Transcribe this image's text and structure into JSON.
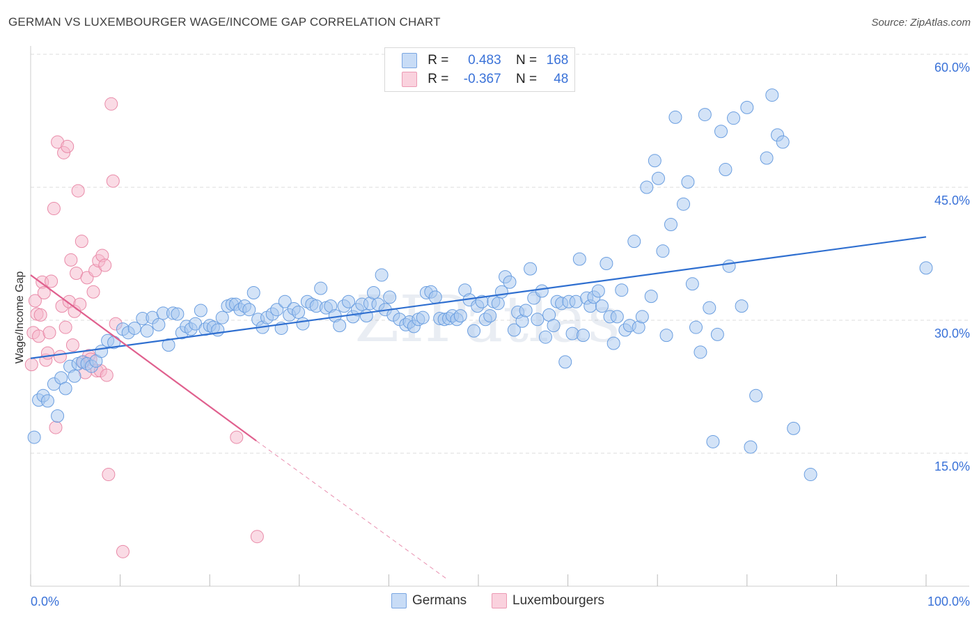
{
  "header": {
    "title": "GERMAN VS LUXEMBOURGER WAGE/INCOME GAP CORRELATION CHART",
    "source": "Source: ZipAtlas.com"
  },
  "legend": {
    "r_label": "R =",
    "n_label": "N =",
    "rows": [
      {
        "name": "Germans",
        "r": "0.483",
        "n": "168",
        "color": "#a8c8f0"
      },
      {
        "name": "Luxembourgers",
        "r": "-0.367",
        "n": "48",
        "color": "#f5b8cb"
      }
    ]
  },
  "colors": {
    "german_fill": "#a8c8f0",
    "german_stroke": "#6a9ee0",
    "german_line": "#2f6fd0",
    "lux_fill": "#f5b8cb",
    "lux_stroke": "#e98aa8",
    "lux_line": "#e0608e",
    "grid": "#dcdcdc",
    "tick_label": "#3a72d8"
  },
  "chart_data": {
    "type": "scatter",
    "title": "GERMAN VS LUXEMBOURGER WAGE/INCOME GAP CORRELATION CHART",
    "xlabel": "",
    "ylabel": "Wage/Income Gap",
    "xlim": [
      0,
      100
    ],
    "ylim": [
      0,
      63
    ],
    "x_tick_labels": [
      "0.0%",
      "100.0%"
    ],
    "y_ticks": [
      15,
      30,
      45,
      60
    ],
    "y_tick_labels": [
      "15.0%",
      "30.0%",
      "45.0%",
      "60.0%"
    ],
    "grid": true,
    "legend_position": "top-center",
    "series": [
      {
        "name": "Germans",
        "trend": {
          "x": [
            0,
            100
          ],
          "y": [
            25.7,
            39.4
          ]
        },
        "points": [
          [
            0.4,
            16.8
          ],
          [
            0.9,
            21
          ],
          [
            1.4,
            21.5
          ],
          [
            1.9,
            20.9
          ],
          [
            2.6,
            22.8
          ],
          [
            3,
            19.2
          ],
          [
            3.4,
            23.5
          ],
          [
            3.9,
            22.3
          ],
          [
            4.4,
            24.8
          ],
          [
            4.9,
            23.7
          ],
          [
            5.3,
            25.1
          ],
          [
            5.8,
            25.3
          ],
          [
            6.3,
            25.1
          ],
          [
            6.8,
            24.8
          ],
          [
            7.3,
            25.4
          ],
          [
            7.9,
            26.5
          ],
          [
            8.6,
            27.7
          ],
          [
            9.3,
            27.5
          ],
          [
            10.3,
            29
          ],
          [
            10.9,
            28.6
          ],
          [
            11.6,
            29.1
          ],
          [
            12.5,
            30.2
          ],
          [
            13,
            28.8
          ],
          [
            13.6,
            30.3
          ],
          [
            14.3,
            29.5
          ],
          [
            14.8,
            30.8
          ],
          [
            15.4,
            27.2
          ],
          [
            15.9,
            30.8
          ],
          [
            16.4,
            30.7
          ],
          [
            16.9,
            28.6
          ],
          [
            17.4,
            29.3
          ],
          [
            17.9,
            29
          ],
          [
            18.4,
            29.6
          ],
          [
            19,
            31.1
          ],
          [
            19.5,
            29
          ],
          [
            20,
            29.4
          ],
          [
            20.4,
            29.2
          ],
          [
            20.9,
            28.9
          ],
          [
            21.4,
            30.3
          ],
          [
            22,
            31.6
          ],
          [
            22.5,
            31.8
          ],
          [
            22.9,
            31.8
          ],
          [
            23.4,
            31.2
          ],
          [
            23.9,
            31.6
          ],
          [
            24.4,
            31.2
          ],
          [
            24.9,
            33.1
          ],
          [
            25.4,
            30.1
          ],
          [
            25.9,
            29.2
          ],
          [
            26.4,
            30.3
          ],
          [
            27,
            30.7
          ],
          [
            27.5,
            31.2
          ],
          [
            28,
            29.1
          ],
          [
            28.4,
            32.1
          ],
          [
            28.9,
            30.6
          ],
          [
            29.4,
            31.3
          ],
          [
            29.9,
            30.9
          ],
          [
            30.4,
            29.6
          ],
          [
            30.9,
            32.1
          ],
          [
            31.4,
            31.8
          ],
          [
            31.9,
            31.6
          ],
          [
            32.4,
            33.6
          ],
          [
            33,
            31.4
          ],
          [
            33.5,
            31.6
          ],
          [
            34,
            30.5
          ],
          [
            34.5,
            29.4
          ],
          [
            35,
            31.6
          ],
          [
            35.5,
            32.1
          ],
          [
            36,
            30.4
          ],
          [
            36.5,
            31.2
          ],
          [
            37,
            31.8
          ],
          [
            37.5,
            30.5
          ],
          [
            37.9,
            31.9
          ],
          [
            38.3,
            33.1
          ],
          [
            38.8,
            31.8
          ],
          [
            39.2,
            35.1
          ],
          [
            39.6,
            31.2
          ],
          [
            40.1,
            32.6
          ],
          [
            40.5,
            30.6
          ],
          [
            41.2,
            30.1
          ],
          [
            41.9,
            29.5
          ],
          [
            42.3,
            29.8
          ],
          [
            42.8,
            29.3
          ],
          [
            43.3,
            30.1
          ],
          [
            43.8,
            30.3
          ],
          [
            44.2,
            33.1
          ],
          [
            44.7,
            33.2
          ],
          [
            45.2,
            32.6
          ],
          [
            45.7,
            30.2
          ],
          [
            46.2,
            30.1
          ],
          [
            46.7,
            30.2
          ],
          [
            47.1,
            30.5
          ],
          [
            47.6,
            30.1
          ],
          [
            48,
            30.5
          ],
          [
            48.5,
            33.4
          ],
          [
            49,
            32.3
          ],
          [
            49.5,
            28.8
          ],
          [
            49.9,
            31.6
          ],
          [
            50.4,
            32.1
          ],
          [
            50.8,
            30.1
          ],
          [
            51.3,
            30.5
          ],
          [
            51.7,
            32.1
          ],
          [
            52.2,
            31.9
          ],
          [
            52.6,
            33.2
          ],
          [
            53,
            34.9
          ],
          [
            53.5,
            34.3
          ],
          [
            54,
            28.9
          ],
          [
            54.4,
            30.9
          ],
          [
            54.9,
            29.9
          ],
          [
            55.3,
            31.1
          ],
          [
            55.8,
            35.8
          ],
          [
            56.2,
            32.5
          ],
          [
            56.6,
            30.1
          ],
          [
            57.1,
            33.3
          ],
          [
            57.5,
            28.1
          ],
          [
            57.9,
            30.6
          ],
          [
            58.4,
            29.4
          ],
          [
            58.8,
            32.1
          ],
          [
            59.3,
            31.9
          ],
          [
            59.7,
            25.3
          ],
          [
            60.1,
            32.1
          ],
          [
            60.5,
            28.5
          ],
          [
            60.9,
            32.1
          ],
          [
            61.3,
            36.9
          ],
          [
            61.7,
            28.3
          ],
          [
            62.1,
            32.5
          ],
          [
            62.5,
            31.6
          ],
          [
            62.9,
            32.6
          ],
          [
            63.4,
            33.3
          ],
          [
            63.8,
            31.6
          ],
          [
            64.3,
            36.4
          ],
          [
            64.7,
            30.4
          ],
          [
            65.1,
            27.4
          ],
          [
            65.5,
            30.4
          ],
          [
            66,
            33.4
          ],
          [
            66.4,
            28.9
          ],
          [
            66.9,
            29.4
          ],
          [
            67.4,
            38.9
          ],
          [
            67.9,
            29.2
          ],
          [
            68.3,
            30.4
          ],
          [
            68.8,
            45.0
          ],
          [
            69.3,
            32.7
          ],
          [
            69.7,
            48.0
          ],
          [
            70.1,
            46.0
          ],
          [
            70.6,
            37.8
          ],
          [
            71,
            28.3
          ],
          [
            71.5,
            40.8
          ],
          [
            72,
            52.9
          ],
          [
            72.9,
            43.1
          ],
          [
            73.4,
            45.6
          ],
          [
            73.9,
            34.1
          ],
          [
            74.3,
            29.2
          ],
          [
            74.8,
            26.4
          ],
          [
            75.3,
            53.2
          ],
          [
            75.8,
            31.4
          ],
          [
            76.2,
            16.3
          ],
          [
            76.7,
            28.4
          ],
          [
            77.1,
            51.3
          ],
          [
            77.6,
            47.0
          ],
          [
            78,
            36.1
          ],
          [
            78.5,
            52.8
          ],
          [
            79.4,
            31.6
          ],
          [
            80,
            54.0
          ],
          [
            80.4,
            15.7
          ],
          [
            81,
            21.5
          ],
          [
            82.2,
            48.3
          ],
          [
            82.8,
            55.4
          ],
          [
            83.4,
            50.9
          ],
          [
            84,
            50.1
          ],
          [
            85.2,
            17.8
          ],
          [
            87.1,
            12.6
          ],
          [
            100,
            35.9
          ]
        ]
      },
      {
        "name": "Luxembourgers",
        "trend": {
          "x": [
            0,
            25.2
          ],
          "y": [
            35.1,
            16.4
          ]
        },
        "trend_extension": {
          "x": [
            25.2,
            46.5
          ],
          "y": [
            16.4,
            0.8
          ]
        },
        "points": [
          [
            0.1,
            25
          ],
          [
            0.3,
            28.6
          ],
          [
            0.5,
            32.2
          ],
          [
            0.7,
            30.7
          ],
          [
            0.9,
            28.2
          ],
          [
            1.1,
            30.6
          ],
          [
            1.3,
            34.3
          ],
          [
            1.5,
            33.1
          ],
          [
            1.7,
            25.5
          ],
          [
            1.9,
            26.3
          ],
          [
            2.1,
            28.6
          ],
          [
            2.3,
            34.4
          ],
          [
            2.6,
            42.6
          ],
          [
            2.8,
            17.9
          ],
          [
            3.0,
            50.1
          ],
          [
            3.3,
            25.9
          ],
          [
            3.5,
            31.6
          ],
          [
            3.7,
            48.9
          ],
          [
            3.9,
            29.2
          ],
          [
            4.1,
            49.6
          ],
          [
            4.3,
            32.1
          ],
          [
            4.5,
            36.8
          ],
          [
            4.7,
            27.2
          ],
          [
            4.9,
            31.0
          ],
          [
            5.1,
            35.3
          ],
          [
            5.3,
            44.6
          ],
          [
            5.5,
            31.8
          ],
          [
            5.7,
            38.9
          ],
          [
            5.9,
            25.3
          ],
          [
            6.1,
            24.1
          ],
          [
            6.3,
            34.8
          ],
          [
            6.5,
            26.0
          ],
          [
            6.7,
            25.6
          ],
          [
            7.0,
            33.2
          ],
          [
            7.2,
            35.6
          ],
          [
            7.4,
            24.3
          ],
          [
            7.6,
            36.7
          ],
          [
            7.8,
            24.3
          ],
          [
            8.0,
            37.3
          ],
          [
            8.3,
            36.2
          ],
          [
            8.5,
            23.8
          ],
          [
            8.7,
            12.6
          ],
          [
            9.0,
            54.4
          ],
          [
            9.2,
            45.7
          ],
          [
            9.5,
            29.6
          ],
          [
            10.3,
            3.9
          ],
          [
            23.0,
            16.8
          ],
          [
            25.3,
            5.6
          ]
        ]
      }
    ]
  },
  "bottom_legend": [
    "Germans",
    "Luxembourgers"
  ],
  "watermark": "ZIPatlas"
}
